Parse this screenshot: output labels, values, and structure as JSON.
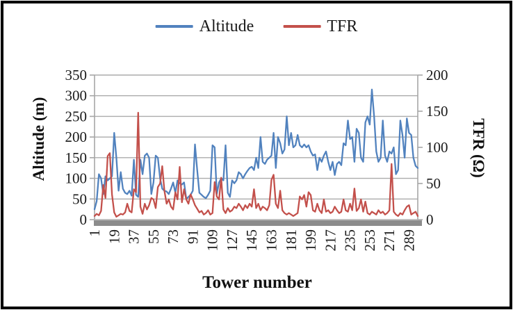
{
  "chart_data": {
    "type": "line",
    "title": "",
    "xlabel": "Tower number",
    "ylabel_left": "Altitude (m)",
    "ylabel_right": "TFR (Ω)",
    "x_range": [
      1,
      297
    ],
    "y_left_range": [
      0,
      350
    ],
    "y_right_range": [
      0,
      200
    ],
    "y_left_ticks": [
      0,
      50,
      100,
      150,
      200,
      250,
      300,
      350
    ],
    "y_right_ticks": [
      0,
      50,
      100,
      150,
      200
    ],
    "x_tick_labels": [
      1,
      19,
      37,
      55,
      73,
      91,
      109,
      127,
      145,
      163,
      181,
      199,
      217,
      235,
      253,
      271,
      289
    ],
    "grid": true,
    "legend_position": "top",
    "colors": {
      "grid": "#ABABAB",
      "axis": "#A6A6A6",
      "baseline_bar": "#8C8C8C",
      "altitude": "#5182BE",
      "tfr": "#C3504B"
    },
    "series": [
      {
        "name": "Altitude",
        "axis": "left",
        "color": "#5182BE",
        "x_start": 1,
        "x_step": 2,
        "values": [
          25,
          45,
          110,
          100,
          62,
          105,
          95,
          100,
          105,
          210,
          150,
          70,
          115,
          75,
          65,
          62,
          70,
          58,
          145,
          60,
          55,
          145,
          110,
          155,
          160,
          150,
          62,
          90,
          155,
          150,
          100,
          75,
          70,
          68,
          62,
          75,
          90,
          65,
          95,
          88,
          85,
          90,
          50,
          55,
          60,
          70,
          182,
          120,
          65,
          60,
          55,
          52,
          60,
          70,
          180,
          175,
          62,
          90,
          100,
          95,
          180,
          65,
          55,
          95,
          88,
          95,
          115,
          110,
          100,
          110,
          118,
          125,
          128,
          120,
          150,
          125,
          200,
          140,
          135,
          145,
          150,
          155,
          210,
          125,
          200,
          185,
          160,
          170,
          250,
          180,
          210,
          175,
          180,
          205,
          180,
          175,
          182,
          175,
          180,
          165,
          155,
          158,
          120,
          150,
          140,
          155,
          165,
          140,
          120,
          140,
          108,
          135,
          140,
          132,
          185,
          180,
          240,
          195,
          200,
          140,
          220,
          210,
          150,
          140,
          235,
          250,
          230,
          315,
          250,
          165,
          140,
          150,
          240,
          155,
          140,
          165,
          160,
          175,
          110,
          120,
          240,
          205,
          150,
          245,
          210,
          205,
          150,
          130,
          125
        ]
      },
      {
        "name": "TFR",
        "axis": "right",
        "color": "#C3504B",
        "x_start": 1,
        "x_step": 2,
        "values": [
          5,
          8,
          6,
          12,
          48,
          30,
          88,
          92,
          35,
          10,
          4,
          6,
          8,
          7,
          10,
          22,
          12,
          10,
          42,
          38,
          148,
          18,
          8,
          22,
          14,
          20,
          30,
          28,
          16,
          45,
          50,
          74,
          40,
          22,
          28,
          18,
          14,
          38,
          28,
          73,
          24,
          42,
          28,
          22,
          35,
          28,
          20,
          15,
          10,
          12,
          7,
          9,
          13,
          7,
          9,
          52,
          32,
          28,
          58,
          14,
          9,
          16,
          11,
          13,
          18,
          16,
          22,
          18,
          13,
          20,
          16,
          22,
          18,
          42,
          16,
          22,
          13,
          18,
          16,
          13,
          20,
          55,
          62,
          22,
          16,
          40,
          13,
          9,
          7,
          9,
          7,
          5,
          7,
          9,
          32,
          28,
          34,
          18,
          38,
          34,
          13,
          11,
          22,
          13,
          9,
          28,
          11,
          13,
          9,
          11,
          18,
          13,
          9,
          11,
          28,
          13,
          11,
          22,
          13,
          43,
          12,
          16,
          28,
          11,
          25,
          9,
          7,
          11,
          9,
          7,
          13,
          9,
          11,
          7,
          9,
          13,
          77,
          11,
          7,
          5,
          9,
          7,
          13,
          18,
          20,
          7,
          9,
          11,
          5
        ]
      }
    ]
  }
}
